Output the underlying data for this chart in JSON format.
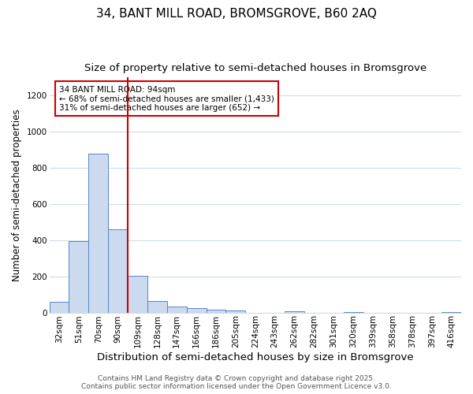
{
  "title_line1": "34, BANT MILL ROAD, BROMSGROVE, B60 2AQ",
  "title_line2": "Size of property relative to semi-detached houses in Bromsgrove",
  "xlabel": "Distribution of semi-detached houses by size in Bromsgrove",
  "ylabel": "Number of semi-detached properties",
  "bin_labels": [
    "32sqm",
    "51sqm",
    "70sqm",
    "90sqm",
    "109sqm",
    "128sqm",
    "147sqm",
    "166sqm",
    "186sqm",
    "205sqm",
    "224sqm",
    "243sqm",
    "262sqm",
    "282sqm",
    "301sqm",
    "320sqm",
    "339sqm",
    "358sqm",
    "378sqm",
    "397sqm",
    "416sqm"
  ],
  "bar_values": [
    60,
    395,
    880,
    460,
    205,
    62,
    33,
    22,
    15,
    10,
    0,
    0,
    8,
    0,
    0,
    3,
    0,
    0,
    0,
    0,
    1
  ],
  "bar_color": "#ccdaf0",
  "bar_edge_color": "#5585c8",
  "vline_x": 4,
  "vline_color": "#cc0000",
  "annotation_text": "34 BANT MILL ROAD: 94sqm\n← 68% of semi-detached houses are smaller (1,433)\n31% of semi-detached houses are larger (652) →",
  "annotation_box_color": "#ffffff",
  "annotation_box_edge": "#cc0000",
  "ylim": [
    0,
    1300
  ],
  "yticks": [
    0,
    200,
    400,
    600,
    800,
    1000,
    1200
  ],
  "fig_background": "#ffffff",
  "plot_background": "#ffffff",
  "grid_color": "#d0dce8",
  "footer_text": "Contains HM Land Registry data © Crown copyright and database right 2025.\nContains public sector information licensed under the Open Government Licence v3.0.",
  "title_fontsize": 11,
  "subtitle_fontsize": 9.5,
  "xlabel_fontsize": 9.5,
  "ylabel_fontsize": 8.5,
  "tick_fontsize": 7.5,
  "annotation_fontsize": 7.5,
  "footer_fontsize": 6.5
}
